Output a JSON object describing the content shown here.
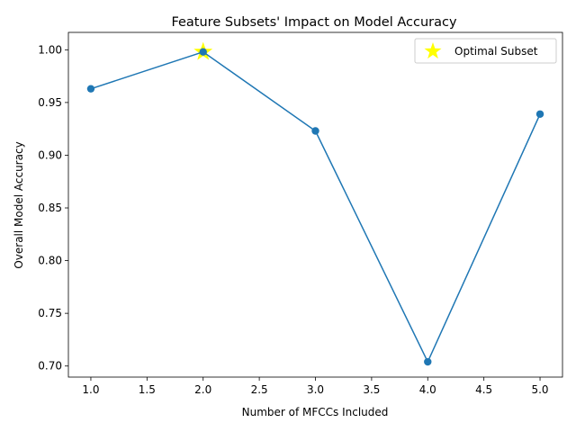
{
  "chart_data": {
    "type": "line",
    "title": "Feature Subsets' Impact on Model Accuracy",
    "xlabel": "Number of MFCCs Included",
    "ylabel": "Overall Model Accuracy",
    "x": [
      1,
      2,
      3,
      4,
      5
    ],
    "series": [
      {
        "values": [
          0.963,
          0.998,
          0.923,
          0.704,
          0.939
        ],
        "color": "#1f77b4",
        "marker": "circle"
      }
    ],
    "highlight": {
      "name": "Optimal Subset",
      "x": 2,
      "y": 0.998,
      "marker": "star",
      "color": "#ffff00"
    },
    "xlim": [
      0.8,
      5.2
    ],
    "ylim": [
      0.6895,
      1.0165
    ],
    "xticks": [
      1.0,
      1.5,
      2.0,
      2.5,
      3.0,
      3.5,
      4.0,
      4.5,
      5.0
    ],
    "yticks": [
      0.7,
      0.75,
      0.8,
      0.85,
      0.9,
      0.95,
      1.0
    ],
    "xtick_labels": [
      "1.0",
      "1.5",
      "2.0",
      "2.5",
      "3.0",
      "3.5",
      "4.0",
      "4.5",
      "5.0"
    ],
    "ytick_labels": [
      "0.70",
      "0.75",
      "0.80",
      "0.85",
      "0.90",
      "0.95",
      "1.00"
    ],
    "legend": {
      "position": "upper-right",
      "entries": [
        "Optimal Subset"
      ]
    },
    "grid": false
  }
}
